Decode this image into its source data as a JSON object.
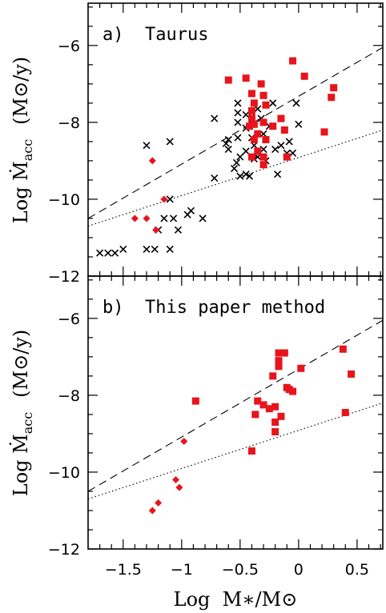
{
  "figure": {
    "x_axis_title": "Log  M∗/M⊙",
    "y_axis_title_main": "Log  Ṁ",
    "y_axis_title_sub": "acc",
    "y_axis_title_unit": "(M⊙/y)"
  },
  "colors": {
    "red_points": "#e8141c",
    "crosses": "#000000",
    "dashed_line": "#000000",
    "dotted_line": "#000000"
  },
  "chart_data": [
    {
      "type": "scatter",
      "panel_label": "a)  Taurus",
      "xlim": [
        -1.8,
        0.72
      ],
      "ylim": [
        -12,
        -4.9
      ],
      "x_ticks": [
        -1.5,
        -1,
        -0.5,
        0,
        0.5
      ],
      "x_tick_labels": [
        "",
        "",
        "",
        "",
        ""
      ],
      "y_ticks": [
        -12,
        -10,
        -8,
        -6
      ],
      "y_tick_labels": [
        "−12",
        "−10",
        "−8",
        "−6"
      ],
      "grid": false,
      "lines": [
        {
          "style": "dashed",
          "x": [
            -1.8,
            0.72
          ],
          "y": [
            -10.5,
            -6.05
          ]
        },
        {
          "style": "dotted",
          "x": [
            -1.8,
            0.72
          ],
          "y": [
            -10.7,
            -8.2
          ]
        }
      ],
      "series": [
        {
          "marker": "cross",
          "points": [
            [
              -1.7,
              -11.4
            ],
            [
              -1.63,
              -11.4
            ],
            [
              -1.57,
              -11.4
            ],
            [
              -1.5,
              -11.3
            ],
            [
              -1.3,
              -11.3
            ],
            [
              -1.23,
              -11.3
            ],
            [
              -1.1,
              -11.3
            ],
            [
              -1.3,
              -8.6
            ],
            [
              -1.1,
              -8.5
            ],
            [
              -1.2,
              -10.8
            ],
            [
              -1.15,
              -10.5
            ],
            [
              -1.1,
              -10.0
            ],
            [
              -1.07,
              -10.5
            ],
            [
              -1.03,
              -10.8
            ],
            [
              -0.95,
              -10.4
            ],
            [
              -0.92,
              -10.3
            ],
            [
              -0.82,
              -10.5
            ],
            [
              -0.72,
              -9.45
            ],
            [
              -0.72,
              -7.9
            ],
            [
              -0.62,
              -8.55
            ],
            [
              -0.6,
              -8.7
            ],
            [
              -0.55,
              -9.2
            ],
            [
              -0.53,
              -9.05
            ],
            [
              -0.52,
              -7.5
            ],
            [
              -0.52,
              -7.75
            ],
            [
              -0.52,
              -8.0
            ],
            [
              -0.52,
              -8.4
            ],
            [
              -0.5,
              -8.9
            ],
            [
              -0.5,
              -9.4
            ],
            [
              -0.45,
              -7.8
            ],
            [
              -0.45,
              -8.15
            ],
            [
              -0.45,
              -8.75
            ],
            [
              -0.45,
              -9.35
            ],
            [
              -0.42,
              -9.4
            ],
            [
              -0.4,
              -7.75
            ],
            [
              -0.4,
              -8.05
            ],
            [
              -0.4,
              -8.4
            ],
            [
              -0.38,
              -8.95
            ],
            [
              -0.38,
              -8.6
            ],
            [
              -0.35,
              -7.65
            ],
            [
              -0.32,
              -7.9
            ],
            [
              -0.3,
              -8.3
            ],
            [
              -0.3,
              -8.7
            ],
            [
              -0.28,
              -9.0
            ],
            [
              -0.28,
              -7.55
            ],
            [
              -0.25,
              -8.1
            ],
            [
              -0.22,
              -7.5
            ],
            [
              -0.2,
              -8.7
            ],
            [
              -0.18,
              -9.35
            ],
            [
              -0.15,
              -8.6
            ],
            [
              -0.1,
              -8.8
            ],
            [
              -0.08,
              -8.5
            ],
            [
              -0.05,
              -8.8
            ],
            [
              -0.02,
              -7.5
            ],
            [
              0.0,
              -8.05
            ],
            [
              -0.35,
              -8.9
            ],
            [
              -0.6,
              -8.45
            ]
          ]
        },
        {
          "marker": "square",
          "points": [
            [
              -0.6,
              -6.9
            ],
            [
              -0.45,
              -6.85
            ],
            [
              -0.4,
              -7.25
            ],
            [
              -0.38,
              -7.5
            ],
            [
              -0.4,
              -7.7
            ],
            [
              -0.4,
              -7.9
            ],
            [
              -0.38,
              -8.05
            ],
            [
              -0.42,
              -8.1
            ],
            [
              -0.38,
              -8.45
            ],
            [
              -0.35,
              -8.3
            ],
            [
              -0.32,
              -7.0
            ],
            [
              -0.3,
              -7.3
            ],
            [
              -0.28,
              -7.55
            ],
            [
              -0.3,
              -8.0
            ],
            [
              -0.28,
              -8.45
            ],
            [
              -0.3,
              -8.9
            ],
            [
              -0.3,
              -9.1
            ],
            [
              -0.22,
              -8.1
            ],
            [
              -0.15,
              -7.9
            ],
            [
              -0.12,
              -8.2
            ],
            [
              -0.1,
              -8.9
            ],
            [
              -0.05,
              -6.4
            ],
            [
              0.05,
              -6.8
            ],
            [
              0.22,
              -8.25
            ],
            [
              0.28,
              -7.35
            ],
            [
              0.3,
              -7.1
            ],
            [
              -0.35,
              -8.75
            ],
            [
              -0.4,
              -8.9
            ]
          ]
        },
        {
          "marker": "diamond",
          "points": [
            [
              -1.25,
              -9.0
            ],
            [
              -1.4,
              -10.5
            ],
            [
              -1.3,
              -10.5
            ],
            [
              -1.15,
              -10.0
            ],
            [
              -1.22,
              -10.8
            ]
          ]
        }
      ]
    },
    {
      "type": "scatter",
      "panel_label": "b)  This paper method",
      "xlim": [
        -1.8,
        0.72
      ],
      "ylim": [
        -12,
        -4.9
      ],
      "x_ticks": [
        -1.5,
        -1,
        -0.5,
        0,
        0.5
      ],
      "x_tick_labels": [
        "−1.5",
        "−1",
        "−0.5",
        "0",
        "0.5"
      ],
      "y_ticks": [
        -12,
        -10,
        -8,
        -6
      ],
      "y_tick_labels": [
        "−12",
        "−10",
        "−8",
        "−6"
      ],
      "grid": false,
      "lines": [
        {
          "style": "dashed",
          "x": [
            -1.8,
            0.72
          ],
          "y": [
            -10.5,
            -6.05
          ]
        },
        {
          "style": "dotted",
          "x": [
            -1.8,
            0.72
          ],
          "y": [
            -10.7,
            -8.2
          ]
        }
      ],
      "series": [
        {
          "marker": "square",
          "points": [
            [
              -0.88,
              -8.15
            ],
            [
              -0.4,
              -9.45
            ],
            [
              -0.37,
              -8.5
            ],
            [
              -0.35,
              -8.15
            ],
            [
              -0.3,
              -8.25
            ],
            [
              -0.25,
              -8.35
            ],
            [
              -0.22,
              -7.5
            ],
            [
              -0.2,
              -8.3
            ],
            [
              -0.2,
              -8.7
            ],
            [
              -0.2,
              -8.95
            ],
            [
              -0.17,
              -6.9
            ],
            [
              -0.17,
              -7.1
            ],
            [
              -0.17,
              -7.25
            ],
            [
              -0.15,
              -8.55
            ],
            [
              -0.12,
              -6.9
            ],
            [
              -0.1,
              -7.8
            ],
            [
              -0.08,
              -7.85
            ],
            [
              -0.05,
              -7.9
            ],
            [
              0.02,
              -7.3
            ],
            [
              0.38,
              -6.8
            ],
            [
              0.4,
              -8.45
            ],
            [
              0.45,
              -7.45
            ]
          ]
        },
        {
          "marker": "diamond",
          "points": [
            [
              -0.98,
              -9.2
            ],
            [
              -1.05,
              -10.2
            ],
            [
              -1.02,
              -10.4
            ],
            [
              -1.2,
              -10.8
            ],
            [
              -1.25,
              -11.0
            ]
          ]
        }
      ]
    }
  ]
}
